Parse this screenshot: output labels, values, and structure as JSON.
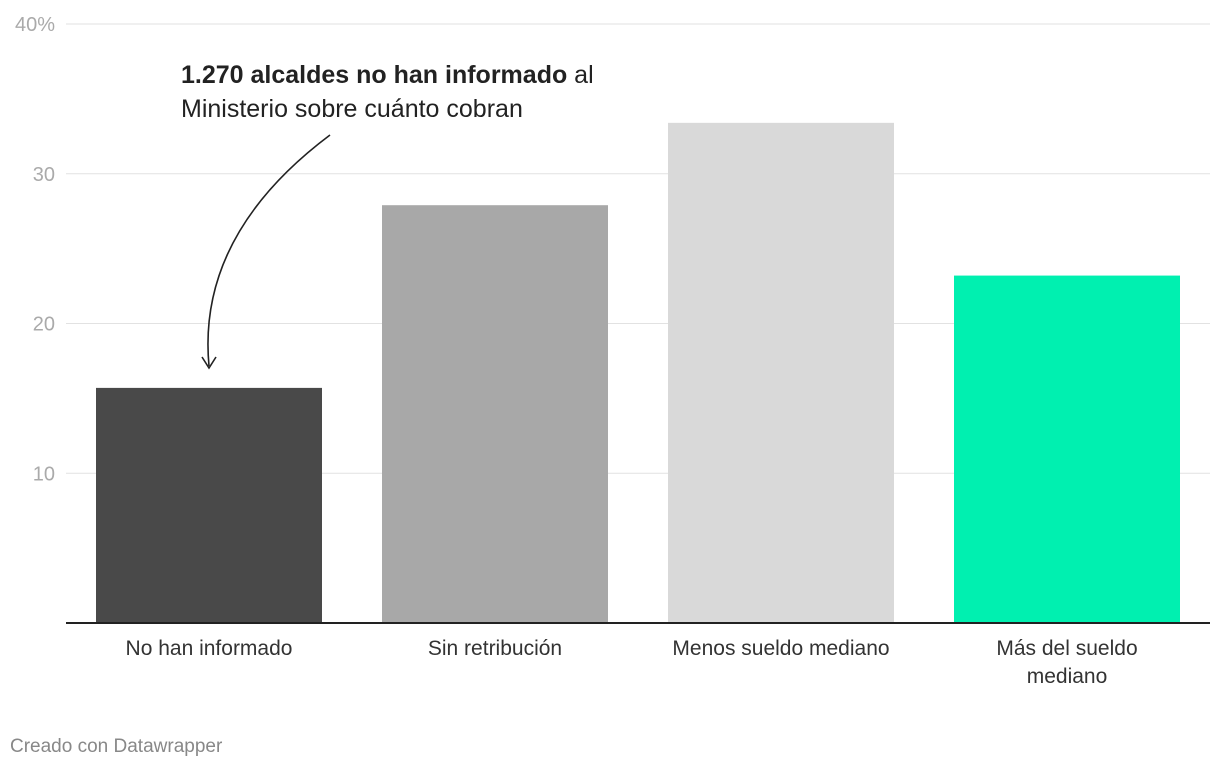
{
  "chart_data": {
    "type": "bar",
    "categories": [
      [
        "No han informado"
      ],
      [
        "Sin retribución"
      ],
      [
        "Menos sueldo mediano"
      ],
      [
        "Más del sueldo",
        "mediano"
      ]
    ],
    "values": [
      15.7,
      27.9,
      33.4,
      23.2
    ],
    "colors": [
      "#494949",
      "#a8a8a8",
      "#d9d9d9",
      "#00f0b0"
    ],
    "ylim": [
      0,
      40
    ],
    "yticks": [
      10,
      20,
      30,
      40
    ],
    "ytick_labels": [
      "10",
      "20",
      "30",
      "40%"
    ],
    "grid": true,
    "annotation": {
      "bold": "1.270 alcaldes no han informado",
      "rest": " al",
      "line2": "Ministerio sobre cuánto cobran",
      "target_category_index": 0
    }
  },
  "footer": {
    "credit": "Creado con Datawrapper"
  }
}
